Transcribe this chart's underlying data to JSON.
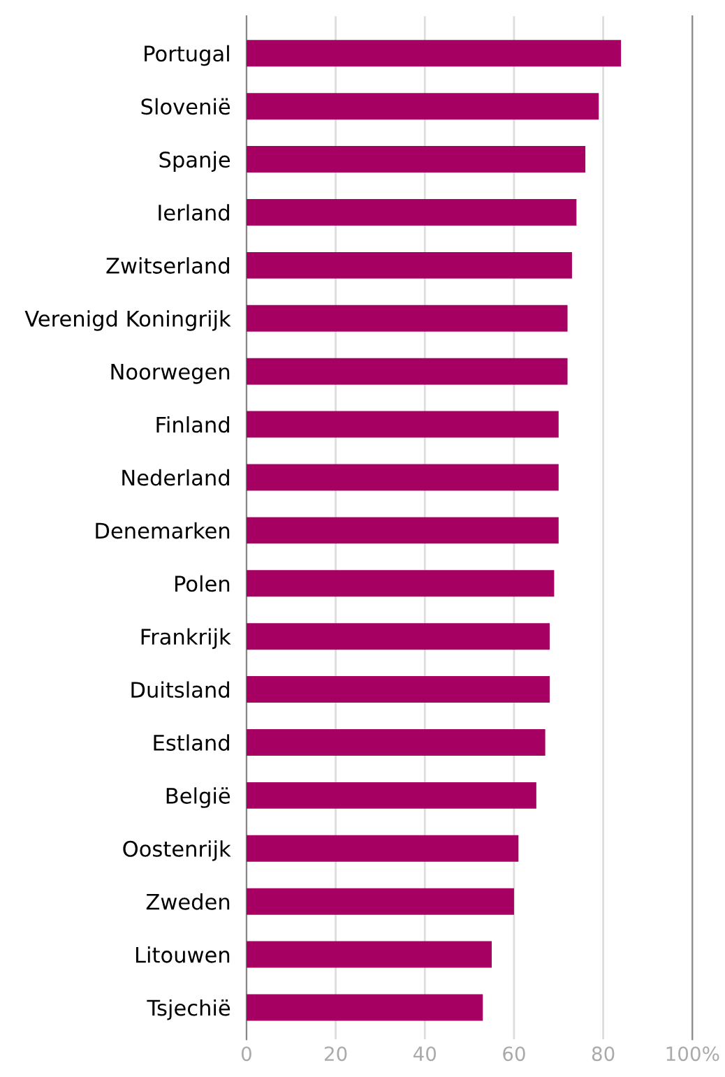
{
  "chart_data": {
    "type": "bar",
    "orientation": "horizontal",
    "categories": [
      "Portugal",
      "Slovenië",
      "Spanje",
      "Ierland",
      "Zwitserland",
      "Verenigd Koningrijk",
      "Noorwegen",
      "Finland",
      "Nederland",
      "Denemarken",
      "Polen",
      "Frankrijk",
      "Duitsland",
      "Estland",
      "België",
      "Oostenrijk",
      "Zweden",
      "Litouwen",
      "Tsjechië"
    ],
    "values": [
      84,
      79,
      76,
      74,
      73,
      72,
      72,
      70,
      70,
      70,
      69,
      68,
      68,
      67,
      65,
      61,
      60,
      55,
      53
    ],
    "color": "#a50062",
    "xlim": [
      0,
      100
    ],
    "xticks": [
      0,
      20,
      40,
      60,
      80,
      {
        "value": 100,
        "label": "100%"
      }
    ],
    "grid": "x"
  }
}
